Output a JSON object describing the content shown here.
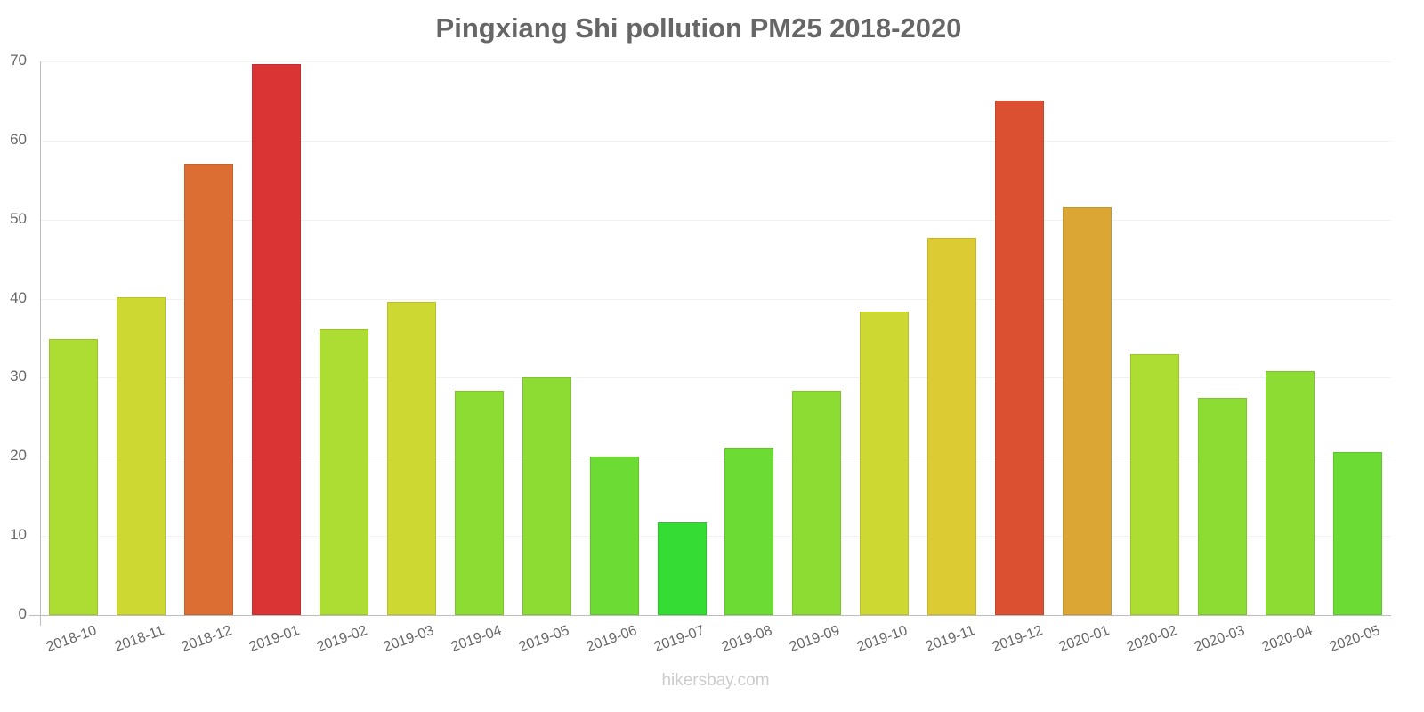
{
  "chart_data": {
    "type": "bar",
    "title": "Pingxiang Shi pollution PM25 2018-2020",
    "xlabel": "",
    "ylabel": "",
    "ylim": [
      0,
      70
    ],
    "yticks": [
      0,
      10,
      20,
      30,
      40,
      50,
      60,
      70
    ],
    "grid": true,
    "legend": null,
    "categories": [
      "2018-10",
      "2018-11",
      "2018-12",
      "2019-01",
      "2019-02",
      "2019-03",
      "2019-04",
      "2019-05",
      "2019-06",
      "2019-07",
      "2019-08",
      "2019-09",
      "2019-10",
      "2019-11",
      "2019-12",
      "2020-01",
      "2020-02",
      "2020-03",
      "2020-04",
      "2020-05"
    ],
    "values": [
      34.9,
      40.2,
      57.1,
      69.7,
      36.1,
      39.6,
      28.4,
      30.0,
      20.0,
      11.7,
      21.2,
      28.4,
      38.4,
      47.7,
      65.0,
      51.5,
      33.0,
      27.5,
      30.8,
      20.6
    ],
    "colors": [
      "#addc32",
      "#cdd932",
      "#dc6e34",
      "#da3434",
      "#addc32",
      "#cdd932",
      "#8cdc34",
      "#8cdc34",
      "#6cdc34",
      "#34dc34",
      "#6cdc34",
      "#8cdc34",
      "#cdd932",
      "#dccb32",
      "#dc5032",
      "#dca634",
      "#addc32",
      "#8cdc34",
      "#8cdc34",
      "#6cdc34"
    ]
  },
  "watermark": "hikersbay.com"
}
